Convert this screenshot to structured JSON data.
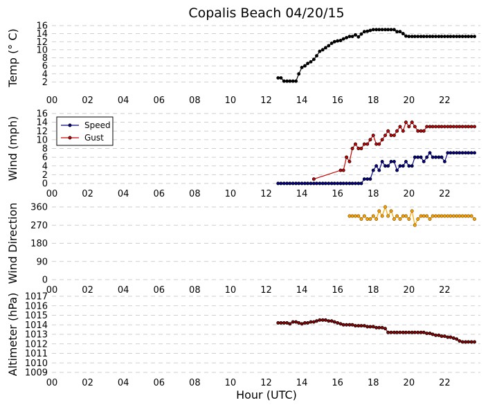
{
  "chart_data": {
    "title": "Copalis Beach 04/20/15",
    "xlabel": "Hour (UTC)",
    "x_ticks": [
      "00",
      "02",
      "04",
      "06",
      "08",
      "10",
      "12",
      "14",
      "16",
      "18",
      "20",
      "22"
    ],
    "xlim": [
      0,
      24
    ],
    "grid": true,
    "panels": [
      {
        "type": "line",
        "ylabel": "Temp ($^\\circ$C)",
        "ylabel_display": "Temp (° C)",
        "ylim": [
          0,
          16
        ],
        "yticks": [
          2,
          4,
          6,
          8,
          10,
          12,
          14,
          16
        ],
        "series": [
          {
            "color": "#000000",
            "x": [
              12.67,
              12.83,
              13.0,
              13.17,
              13.33,
              13.5,
              13.67,
              13.83,
              14.0,
              14.17,
              14.33,
              14.5,
              14.67,
              14.83,
              15.0,
              15.17,
              15.33,
              15.5,
              15.67,
              15.83,
              16.0,
              16.17,
              16.33,
              16.5,
              16.67,
              16.83,
              17.0,
              17.17,
              17.33,
              17.5,
              17.67,
              17.83,
              18.0,
              18.17,
              18.33,
              18.5,
              18.67,
              18.83,
              19.0,
              19.17,
              19.33,
              19.5,
              19.67,
              19.83,
              20.0,
              20.17,
              20.33,
              20.5,
              20.67,
              20.83,
              21.0,
              21.17,
              21.33,
              21.5,
              21.67,
              21.83,
              22.0,
              22.17,
              22.33,
              22.5,
              22.67,
              22.83,
              23.0,
              23.17,
              23.33,
              23.5,
              23.67
            ],
            "y": [
              3,
              3,
              2.2,
              2.2,
              2.2,
              2.2,
              2.2,
              4,
              5.6,
              6,
              6.6,
              7,
              7.6,
              8.5,
              9.6,
              10,
              10.5,
              11,
              11.6,
              12,
              12.2,
              12.3,
              12.7,
              13,
              13.3,
              13.3,
              13.7,
              13.2,
              13.9,
              14.5,
              14.6,
              14.8,
              15,
              15,
              15,
              15,
              15,
              15,
              15,
              15,
              14.5,
              14.5,
              14,
              13.4,
              13.3,
              13.3,
              13.3,
              13.3,
              13.3,
              13.3,
              13.3,
              13.3,
              13.3,
              13.3,
              13.3,
              13.3,
              13.3,
              13.3,
              13.3,
              13.3,
              13.3,
              13.3,
              13.3,
              13.3,
              13.3,
              13.3,
              13.3
            ]
          }
        ]
      },
      {
        "type": "line",
        "ylabel": "Wind (mph)",
        "ylim": [
          0,
          16
        ],
        "yticks": [
          0,
          2,
          4,
          6,
          8,
          10,
          12,
          14,
          16
        ],
        "legend_position": "upper-left",
        "series": [
          {
            "name": "Speed",
            "color": "#00008b",
            "x": [
              12.67,
              12.83,
              13.0,
              13.17,
              13.33,
              13.5,
              13.67,
              13.83,
              14.0,
              14.17,
              14.33,
              14.5,
              14.67,
              14.83,
              15.0,
              15.17,
              15.33,
              15.5,
              15.67,
              15.83,
              16.0,
              16.17,
              16.33,
              16.5,
              16.67,
              16.83,
              17.0,
              17.17,
              17.33,
              17.5,
              17.67,
              17.83,
              18.0,
              18.17,
              18.33,
              18.5,
              18.67,
              18.83,
              19.0,
              19.17,
              19.33,
              19.5,
              19.67,
              19.83,
              20.0,
              20.17,
              20.33,
              20.5,
              20.67,
              20.83,
              21.0,
              21.17,
              21.33,
              21.5,
              21.67,
              21.83,
              22.0,
              22.17,
              22.33,
              22.5,
              22.67,
              22.83,
              23.0,
              23.17,
              23.33,
              23.5,
              23.67
            ],
            "y": [
              0,
              0,
              0,
              0,
              0,
              0,
              0,
              0,
              0,
              0,
              0,
              0,
              0,
              0,
              0,
              0,
              0,
              0,
              0,
              0,
              0,
              0,
              0,
              0,
              0,
              0,
              0,
              0,
              0,
              1,
              1,
              1,
              3,
              4,
              3,
              5,
              4,
              4,
              5,
              5,
              3,
              4,
              4,
              5,
              4,
              4,
              6,
              6,
              6,
              5,
              6,
              7,
              6,
              6,
              6,
              6,
              5,
              7,
              7,
              7,
              7,
              7,
              7,
              7,
              7,
              7,
              7
            ]
          },
          {
            "name": "Gust",
            "color": "#cc0000",
            "x": [
              14.67,
              16.17,
              16.33,
              16.5,
              16.67,
              16.83,
              17.0,
              17.17,
              17.33,
              17.5,
              17.67,
              17.83,
              18.0,
              18.17,
              18.33,
              18.5,
              18.67,
              18.83,
              19.0,
              19.17,
              19.33,
              19.5,
              19.67,
              19.83,
              20.0,
              20.17,
              20.33,
              20.5,
              20.67,
              20.83,
              21.0,
              21.17,
              21.33,
              21.5,
              21.67,
              21.83,
              22.0,
              22.17,
              22.33,
              22.5,
              22.67,
              22.83,
              23.0,
              23.17,
              23.33,
              23.5,
              23.67
            ],
            "y": [
              1,
              3,
              3,
              6,
              5,
              8,
              9,
              8,
              8,
              9,
              9,
              10,
              11,
              9,
              9,
              10,
              11,
              12,
              11,
              11,
              12,
              13,
              12,
              14,
              13,
              14,
              13,
              12,
              12,
              12,
              13,
              13,
              13,
              13,
              13,
              13,
              13,
              13,
              13,
              13,
              13,
              13,
              13,
              13,
              13,
              13,
              13
            ]
          }
        ]
      },
      {
        "type": "line",
        "ylabel": "Wind Direction",
        "ylim": [
          0,
          360
        ],
        "yticks": [
          0,
          90,
          180,
          270,
          360
        ],
        "series": [
          {
            "color": "#ffa500",
            "x": [
              16.67,
              16.83,
              17.0,
              17.17,
              17.33,
              17.5,
              17.67,
              17.83,
              18.0,
              18.17,
              18.33,
              18.5,
              18.67,
              18.83,
              19.0,
              19.17,
              19.33,
              19.5,
              19.67,
              19.83,
              20.0,
              20.17,
              20.33,
              20.5,
              20.67,
              20.83,
              21.0,
              21.17,
              21.33,
              21.5,
              21.67,
              21.83,
              22.0,
              22.17,
              22.33,
              22.5,
              22.67,
              22.83,
              23.0,
              23.17,
              23.33,
              23.5,
              23.67
            ],
            "y": [
              315,
              315,
              315,
              315,
              300,
              315,
              300,
              300,
              315,
              300,
              340,
              315,
              360,
              315,
              340,
              300,
              315,
              300,
              315,
              315,
              300,
              340,
              270,
              300,
              315,
              315,
              315,
              300,
              315,
              315,
              315,
              315,
              315,
              315,
              315,
              315,
              315,
              315,
              315,
              315,
              315,
              315,
              300
            ]
          }
        ]
      },
      {
        "type": "line",
        "ylabel": "Altimeter (hPa)",
        "ylim": [
          1009,
          1017
        ],
        "yticks": [
          1009,
          1010,
          1011,
          1012,
          1013,
          1014,
          1015,
          1016,
          1017
        ],
        "series": [
          {
            "color": "#8b0000",
            "x": [
              12.67,
              12.83,
              13.0,
              13.17,
              13.33,
              13.5,
              13.67,
              13.83,
              14.0,
              14.17,
              14.33,
              14.5,
              14.67,
              14.83,
              15.0,
              15.17,
              15.33,
              15.5,
              15.67,
              15.83,
              16.0,
              16.17,
              16.33,
              16.5,
              16.67,
              16.83,
              17.0,
              17.17,
              17.33,
              17.5,
              17.67,
              17.83,
              18.0,
              18.17,
              18.33,
              18.5,
              18.67,
              18.83,
              19.0,
              19.17,
              19.33,
              19.5,
              19.67,
              19.83,
              20.0,
              20.17,
              20.33,
              20.5,
              20.67,
              20.83,
              21.0,
              21.17,
              21.33,
              21.5,
              21.67,
              21.83,
              22.0,
              22.17,
              22.33,
              22.5,
              22.67,
              22.83,
              23.0,
              23.17,
              23.33,
              23.5,
              23.67
            ],
            "y": [
              1014.2,
              1014.2,
              1014.2,
              1014.2,
              1014.1,
              1014.3,
              1014.3,
              1014.2,
              1014.1,
              1014.2,
              1014.2,
              1014.3,
              1014.3,
              1014.4,
              1014.5,
              1014.5,
              1014.5,
              1014.4,
              1014.4,
              1014.3,
              1014.2,
              1014.1,
              1014.0,
              1014.0,
              1014.0,
              1014.0,
              1013.9,
              1013.9,
              1013.9,
              1013.9,
              1013.8,
              1013.8,
              1013.8,
              1013.7,
              1013.7,
              1013.7,
              1013.6,
              1013.2,
              1013.2,
              1013.2,
              1013.2,
              1013.2,
              1013.2,
              1013.2,
              1013.2,
              1013.2,
              1013.2,
              1013.2,
              1013.2,
              1013.2,
              1013.1,
              1013.1,
              1013.0,
              1012.9,
              1012.9,
              1012.8,
              1012.8,
              1012.7,
              1012.7,
              1012.6,
              1012.5,
              1012.3,
              1012.2,
              1012.2,
              1012.2,
              1012.2,
              1012.2
            ]
          }
        ]
      }
    ]
  }
}
